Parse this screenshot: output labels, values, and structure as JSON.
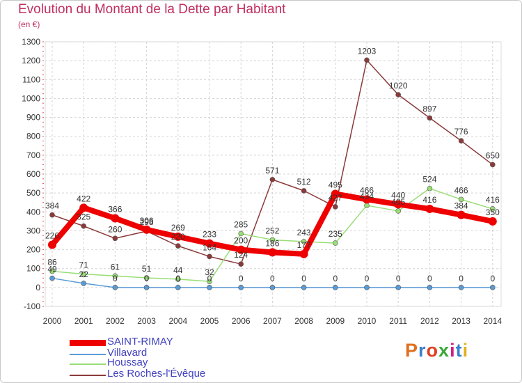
{
  "chart_data": {
    "type": "line",
    "title": "Evolution du Montant de la Dette par Habitant",
    "subtitle": "(en €)",
    "x": [
      "2000",
      "2001",
      "2002",
      "2003",
      "2004",
      "2005",
      "2006",
      "2007",
      "2008",
      "2009",
      "2010",
      "2011",
      "2012",
      "2013",
      "2014"
    ],
    "ylim": [
      -100,
      1300
    ],
    "yticks": [
      -100,
      0,
      100,
      200,
      300,
      400,
      500,
      600,
      700,
      800,
      900,
      1000,
      1100,
      1200,
      1300
    ],
    "grid": true,
    "legend_position": "bottom-left",
    "series": [
      {
        "name": "SAINT-RIMAY",
        "color": "#ee0000",
        "values": [
          226,
          422,
          366,
          306,
          269,
          233,
          200,
          186,
          177,
          495,
          466,
          440,
          416,
          384,
          350
        ],
        "labels": [
          "226",
          "422",
          "366",
          "306",
          "269",
          "233",
          "200",
          "186",
          "177",
          "495",
          "466",
          "440",
          "416",
          "384",
          "350"
        ]
      },
      {
        "name": "Villavard",
        "color": "#5b9bd5",
        "values": [
          49,
          22,
          0,
          0,
          0,
          0,
          0,
          0,
          0,
          0,
          0,
          0,
          0,
          0,
          0
        ],
        "labels": [
          "49",
          "22",
          "0",
          "0",
          "0",
          "0",
          "0",
          "0",
          "0",
          "0",
          "0",
          "0",
          "0",
          "0",
          "0"
        ]
      },
      {
        "name": "Houssay",
        "color": "#99dd77",
        "values": [
          86,
          71,
          61,
          51,
          44,
          32,
          285,
          252,
          243,
          235,
          434,
          405,
          524,
          466,
          416
        ],
        "labels": [
          "86",
          "71",
          "61",
          "51",
          "44",
          "32",
          "285",
          "252",
          "243",
          "235",
          "434",
          "405",
          "524",
          "466",
          "416"
        ]
      },
      {
        "name": "Les Roches-l'Évêque",
        "color": "#8b3a3a",
        "values": [
          384,
          325,
          260,
          298,
          220,
          164,
          124,
          571,
          512,
          427,
          1203,
          1020,
          897,
          776,
          650
        ],
        "labels": [
          "384",
          "325",
          "260",
          "298",
          "220",
          "164",
          "124",
          "571",
          "512",
          "427",
          "1203",
          "1020",
          "897",
          "776",
          "650"
        ]
      }
    ]
  },
  "brand": {
    "text": "Proxiti",
    "colors": [
      "#e07020",
      "#3a7fcf",
      "#e04020",
      "#3aa83a",
      "#d02080",
      "#3a7fcf",
      "#e0b020"
    ]
  }
}
